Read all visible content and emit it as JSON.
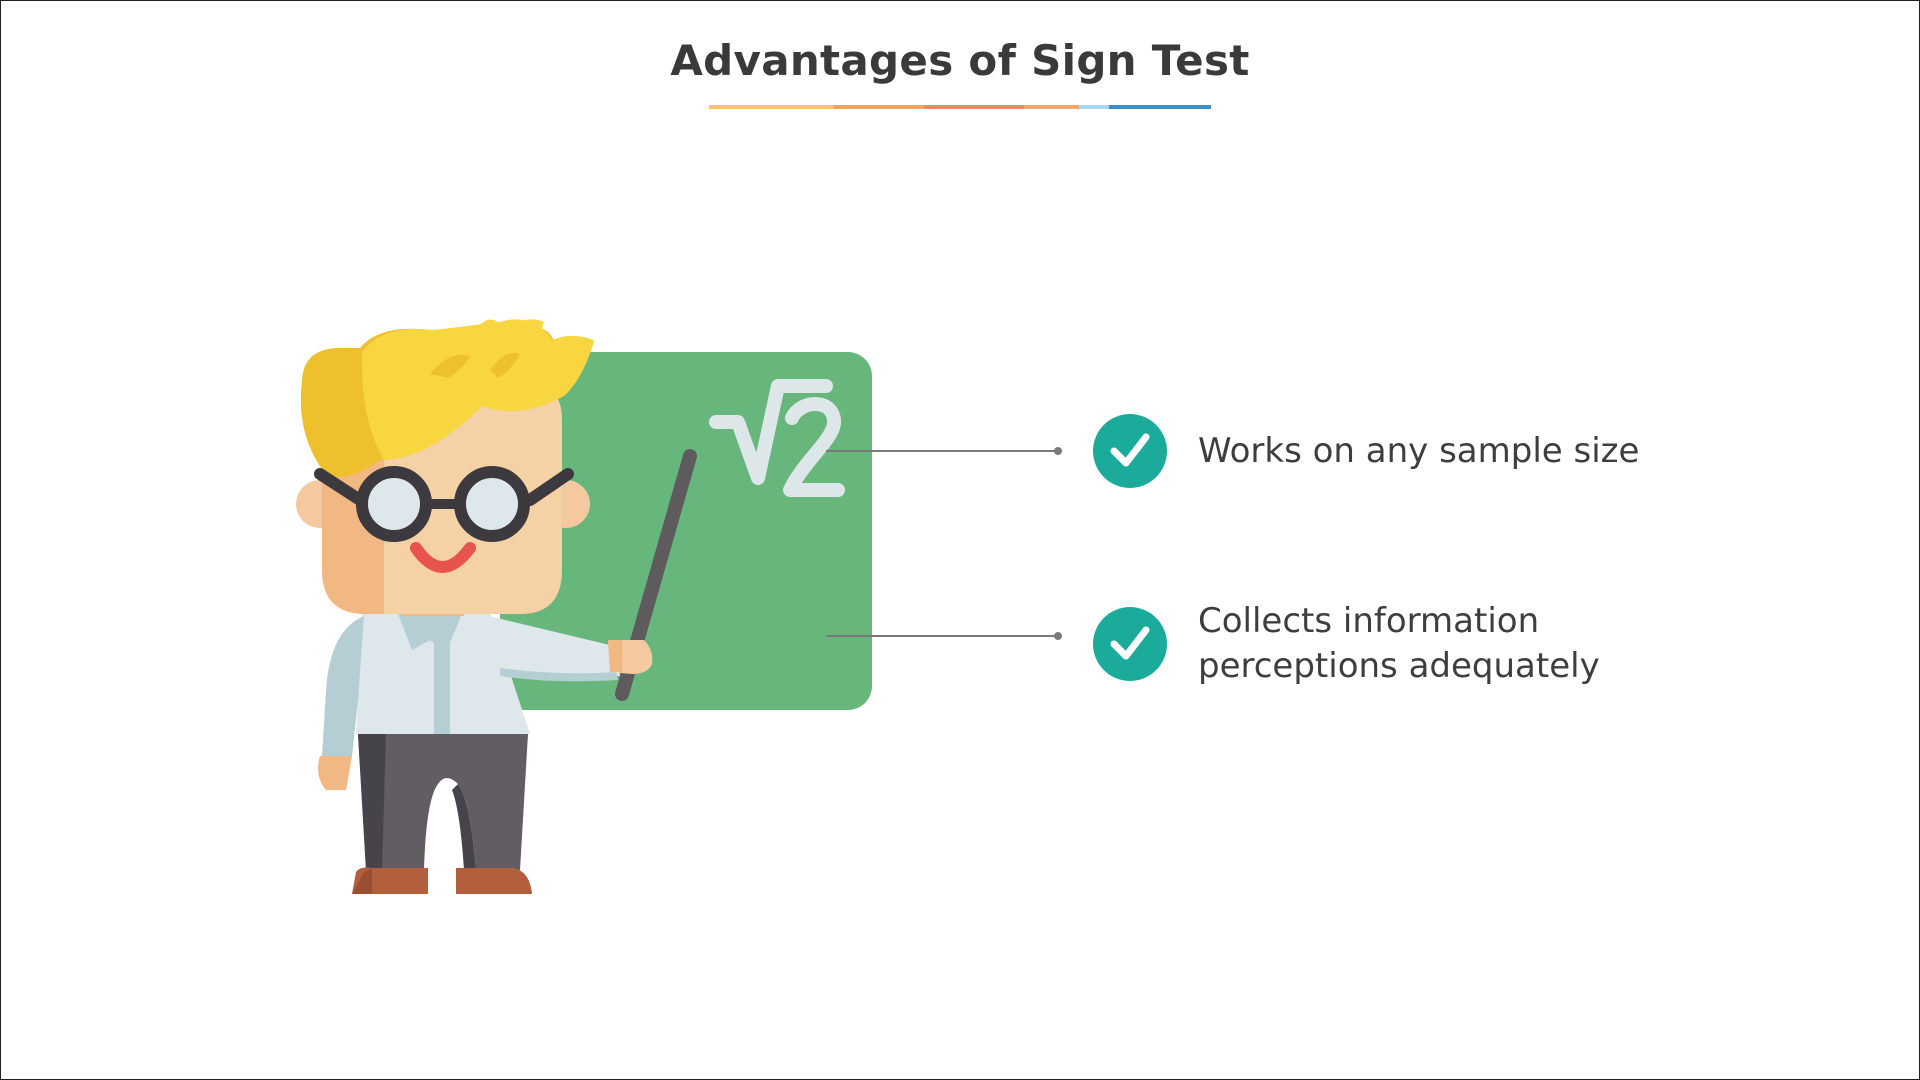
{
  "slide": {
    "title": "Advantages of Sign Test",
    "title_underline_colors": [
      "#f7c46c",
      "#f0a45e",
      "#ec8a5d",
      "#f4a56a",
      "#a8d8f0",
      "#3a8fc6"
    ],
    "illustration": {
      "board_symbol": "√2",
      "board_color": "#67b67b",
      "icon": "teacher-pointing-at-board-icon"
    },
    "points": [
      {
        "icon": "checkmark-icon",
        "lines": [
          "Works on any sample size",
          ""
        ]
      },
      {
        "icon": "checkmark-icon",
        "lines": [
          "Collects information",
          "perceptions adequately"
        ]
      }
    ],
    "accent_color": "#1aab9b"
  }
}
